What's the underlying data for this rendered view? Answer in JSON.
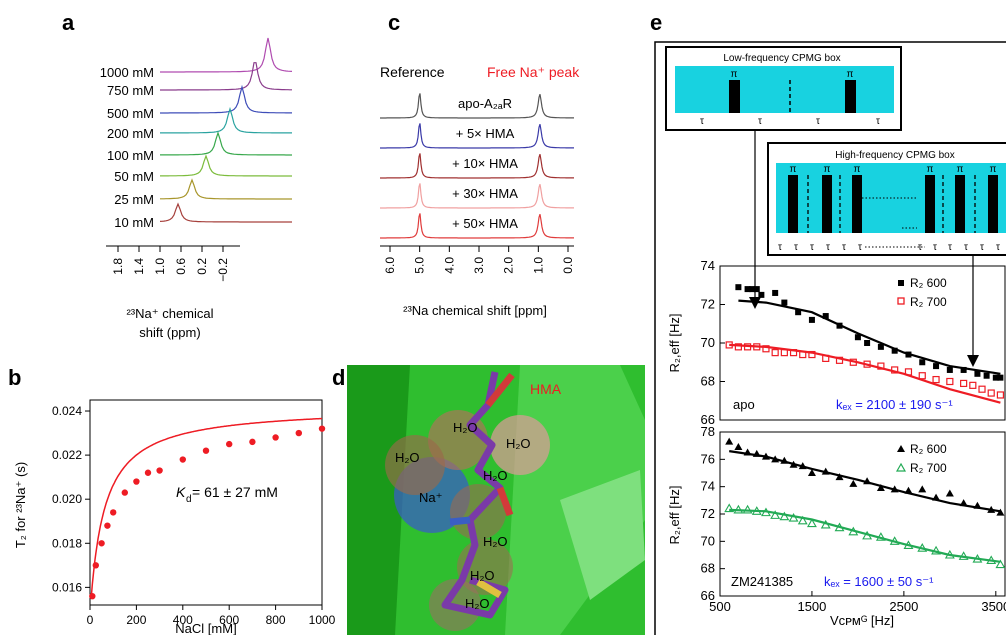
{
  "panel_letters": {
    "a": "a",
    "b": "b",
    "c": "c",
    "d": "d",
    "e": "e"
  },
  "colors": {
    "fit_red": "#ee1c24",
    "box_cyan": "#18d2e0",
    "green_helix": "#33cc33",
    "blue_k": "#1a1aee",
    "series_green": "#22aa55"
  },
  "panel_a": {
    "axis_ticks": [
      "1.8",
      "1.4",
      "1.0",
      "0.6",
      "0.2",
      "−0.2"
    ],
    "axis_label_line1": "²³Na⁺ chemical",
    "axis_label_line2": "shift (ppm)",
    "spectra": [
      {
        "label": "1000 mM",
        "color": "#b04cb0"
      },
      {
        "label": "750 mM",
        "color": "#8a3c8c"
      },
      {
        "label": "500 mM",
        "color": "#3e4db8"
      },
      {
        "label": "200 mM",
        "color": "#2aa3a0"
      },
      {
        "label": "100 mM",
        "color": "#38a84c"
      },
      {
        "label": "50 mM",
        "color": "#7cbc3c"
      },
      {
        "label": "25 mM",
        "color": "#a8962c"
      },
      {
        "label": "10 mM",
        "color": "#a6403c"
      }
    ]
  },
  "panel_b": {
    "ylabel": "T₂ for ²³Na⁺ (s)",
    "xlabel": "NaCl [mM]",
    "kd_text": "K",
    "kd_sub": "d",
    "kd_value": " = 61 ± 27 mM"
  },
  "panel_c": {
    "reference_label": "Reference",
    "free_label": "Free Na⁺ peak",
    "xlabel": "²³Na chemical shift [ppm]",
    "ticks": [
      "6.0",
      "5.0",
      "4.0",
      "3.0",
      "2.0",
      "1.0",
      "0.0"
    ],
    "spectra": [
      {
        "label": "apo-A₂ₐR",
        "color": "#555555"
      },
      {
        "label": "+ 5× HMA",
        "color": "#3a3aa8"
      },
      {
        "label": "+ 10× HMA",
        "color": "#a03030"
      },
      {
        "label": "+ 30× HMA",
        "color": "#f0a0a0"
      },
      {
        "label": "+ 50× HMA",
        "color": "#e03c3c"
      }
    ]
  },
  "panel_d": {
    "hma_label": "HMA",
    "water_label": "H₂O",
    "na_label": "Na⁺"
  },
  "panel_e": {
    "low_box_title": "Low-frequency CPMG box",
    "high_box_title": "High-frequency CPMG box",
    "pi": "π",
    "tau": "τ",
    "ylabel": "R₂,eff [Hz]",
    "xlabel": "Vᴄᴘᴍᴳ [Hz]",
    "top_label": "apo",
    "bottom_label": "ZM241385",
    "kex_top": "kₑₓ = 2100 ± 190 s⁻¹",
    "kex_bottom": "kₑₓ = 1600 ± 50 s⁻¹",
    "legend_600": "R₂ 600",
    "legend_700": "R₂ 700"
  },
  "chart_data": [
    {
      "type": "scatter",
      "panel": "b",
      "xlabel": "NaCl [mM]",
      "ylabel": "T₂ for ²³Na⁺ (s)",
      "xlim": [
        0,
        1000
      ],
      "ylim": [
        0.0152,
        0.0245
      ],
      "xticks": [
        0,
        200,
        400,
        600,
        800,
        1000
      ],
      "yticks": [
        0.016,
        0.018,
        0.02,
        0.022,
        0.024
      ],
      "x": [
        10,
        25,
        50,
        75,
        100,
        150,
        200,
        250,
        300,
        400,
        500,
        600,
        700,
        800,
        900,
        1000
      ],
      "y": [
        0.0156,
        0.017,
        0.018,
        0.0188,
        0.0194,
        0.0203,
        0.0208,
        0.0212,
        0.0213,
        0.0218,
        0.0222,
        0.0225,
        0.0226,
        0.0228,
        0.023,
        0.0232
      ],
      "fit": {
        "model": "binding",
        "Kd": 61,
        "y0": 0.0148,
        "ymax": 0.0094
      }
    },
    {
      "type": "scatter",
      "panel": "e-top",
      "xlim": [
        500,
        3600
      ],
      "ylim": [
        66,
        74
      ],
      "yticks": [
        66,
        68,
        70,
        72,
        74
      ],
      "series": [
        {
          "name": "R₂ 600",
          "marker": "filled-square",
          "color": "#000000",
          "x": [
            700,
            800,
            850,
            900,
            950,
            1100,
            1200,
            1350,
            1500,
            1650,
            1800,
            2000,
            2100,
            2250,
            2400,
            2550,
            2700,
            2850,
            3000,
            3150,
            3300,
            3400,
            3500,
            3550
          ],
          "y": [
            72.9,
            72.8,
            72.8,
            72.8,
            72.5,
            72.6,
            72.1,
            71.6,
            71.2,
            71.4,
            70.9,
            70.3,
            70.0,
            69.8,
            69.6,
            69.4,
            69.0,
            68.8,
            68.6,
            68.6,
            68.4,
            68.3,
            68.2,
            68.2
          ],
          "fit": {
            "x": [
              700,
              1000,
              1500,
              2000,
              2500,
              3000,
              3550
            ],
            "y": [
              72.2,
              72.1,
              71.6,
              70.5,
              69.5,
              68.8,
              68.4
            ]
          }
        },
        {
          "name": "R₂ 700",
          "marker": "open-square",
          "color": "#ee1c24",
          "x": [
            600,
            700,
            800,
            900,
            1000,
            1100,
            1200,
            1300,
            1400,
            1500,
            1650,
            1800,
            1950,
            2100,
            2250,
            2400,
            2550,
            2700,
            2850,
            3000,
            3150,
            3250,
            3350,
            3450,
            3550
          ],
          "y": [
            69.9,
            69.8,
            69.8,
            69.8,
            69.7,
            69.5,
            69.5,
            69.5,
            69.4,
            69.4,
            69.2,
            69.1,
            69.0,
            68.9,
            68.8,
            68.6,
            68.5,
            68.3,
            68.1,
            68.0,
            67.9,
            67.8,
            67.6,
            67.4,
            67.3
          ],
          "fit": {
            "x": [
              600,
              1000,
              1500,
              2000,
              2500,
              3000,
              3550
            ],
            "y": [
              69.9,
              69.8,
              69.5,
              69.0,
              68.4,
              67.6,
              66.9
            ]
          }
        }
      ]
    },
    {
      "type": "scatter",
      "panel": "e-bottom",
      "xlabel": "Vᴄᴘᴍᴳ [Hz]",
      "xlim": [
        500,
        3600
      ],
      "ylim": [
        66,
        78
      ],
      "xticks": [
        500,
        1500,
        2500,
        3500
      ],
      "yticks": [
        66,
        68,
        70,
        72,
        74,
        76,
        78
      ],
      "series": [
        {
          "name": "R₂ 600",
          "marker": "filled-triangle",
          "color": "#000000",
          "x": [
            600,
            700,
            800,
            900,
            1000,
            1100,
            1200,
            1300,
            1400,
            1500,
            1650,
            1800,
            1950,
            2100,
            2250,
            2400,
            2550,
            2700,
            2850,
            3000,
            3150,
            3300,
            3450,
            3550
          ],
          "y": [
            77.3,
            76.9,
            76.5,
            76.4,
            76.2,
            76.0,
            75.9,
            75.6,
            75.5,
            75.0,
            75.1,
            74.7,
            74.2,
            74.4,
            73.9,
            73.8,
            73.7,
            73.8,
            73.2,
            73.5,
            72.8,
            72.6,
            72.3,
            72.1
          ],
          "fit": {
            "x": [
              600,
              1000,
              1500,
              2000,
              2500,
              3000,
              3550
            ],
            "y": [
              76.6,
              76.2,
              75.3,
              74.5,
              73.6,
              72.8,
              72.2
            ]
          }
        },
        {
          "name": "R₂ 700",
          "marker": "open-triangle",
          "color": "#22aa55",
          "x": [
            600,
            700,
            800,
            900,
            1000,
            1100,
            1200,
            1300,
            1400,
            1500,
            1650,
            1800,
            1950,
            2100,
            2250,
            2400,
            2550,
            2700,
            2850,
            3000,
            3150,
            3300,
            3450,
            3550
          ],
          "y": [
            72.4,
            72.3,
            72.3,
            72.2,
            72.1,
            71.9,
            71.8,
            71.7,
            71.5,
            71.3,
            71.2,
            71.0,
            70.7,
            70.4,
            70.3,
            70.0,
            69.7,
            69.5,
            69.3,
            69.0,
            68.9,
            68.7,
            68.6,
            68.3
          ],
          "fit": {
            "x": [
              600,
              1000,
              1500,
              2000,
              2500,
              3000,
              3550
            ],
            "y": [
              72.3,
              72.2,
              71.6,
              70.7,
              69.8,
              69.0,
              68.5
            ]
          }
        }
      ]
    }
  ]
}
